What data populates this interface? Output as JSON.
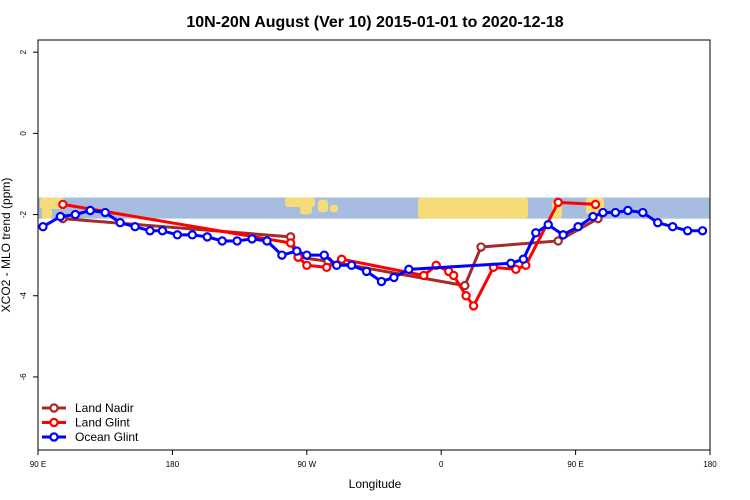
{
  "chart_data": {
    "type": "line",
    "title": "10N-20N August (Ver 10)   2015-01-01 to 2020-12-18",
    "xlabel": "Longitude",
    "ylabel": "XCO2 - MLO trend (ppm)",
    "xlim": [
      -90,
      180
    ],
    "ylim": [
      -7.8,
      2.3
    ],
    "x_ticks": [
      {
        "value": -90,
        "label": "90 E"
      },
      {
        "value": -36,
        "label": "180"
      },
      {
        "value": 18,
        "label": "90 W"
      },
      {
        "value": 72,
        "label": "0"
      },
      {
        "value": 126,
        "label": "90 E"
      },
      {
        "value": 180,
        "label": "180"
      }
    ],
    "y_ticks": [
      {
        "value": 2,
        "label": "2"
      },
      {
        "value": 0,
        "label": "0"
      },
      {
        "value": -2,
        "label": "-2"
      },
      {
        "value": -4,
        "label": "-4"
      },
      {
        "value": -6,
        "label": "-6"
      }
    ],
    "map_band": {
      "y_top": -1.58,
      "y_bottom": -2.1,
      "ocean_color": "#a6bde0",
      "land_color": "#f5dc78"
    },
    "legend_position": "bottom-left",
    "series": [
      {
        "name": "Land Nadir",
        "color": "#a52a2a",
        "x": [
          -80,
          11.5,
          14.5,
          26.5,
          81.5,
          88,
          119,
          135
        ],
        "y": [
          -2.1,
          -2.55,
          -3.05,
          -3.15,
          -3.75,
          -2.8,
          -2.65,
          -2.1
        ]
      },
      {
        "name": "Land Glint",
        "color": "#ff0000",
        "x": [
          -80,
          11.5,
          14.5,
          18,
          26,
          32,
          65,
          70,
          75,
          77,
          82,
          85,
          93,
          102,
          106,
          119,
          134
        ],
        "y": [
          -1.75,
          -2.7,
          -3.05,
          -3.25,
          -3.3,
          -3.1,
          -3.5,
          -3.25,
          -3.4,
          -3.5,
          -4.0,
          -4.25,
          -3.3,
          -3.35,
          -3.25,
          -1.7,
          -1.75
        ]
      },
      {
        "name": "Ocean Glint",
        "color": "#0000ff",
        "x": [
          -88,
          -81,
          -75,
          -69,
          -63,
          -57,
          -51,
          -45,
          -40,
          -34,
          -28,
          -22,
          -16,
          -10,
          -4,
          2,
          8,
          14,
          18,
          25,
          30,
          36,
          42,
          48,
          53,
          59,
          100,
          105,
          110,
          115,
          121,
          127,
          133,
          137,
          142,
          147,
          153,
          159,
          165,
          171,
          177
        ],
        "y": [
          -2.3,
          -2.05,
          -2.0,
          -1.9,
          -1.95,
          -2.2,
          -2.3,
          -2.4,
          -2.4,
          -2.5,
          -2.5,
          -2.55,
          -2.65,
          -2.65,
          -2.6,
          -2.65,
          -3.0,
          -2.9,
          -3.0,
          -3.0,
          -3.25,
          -3.25,
          -3.4,
          -3.65,
          -3.55,
          -3.35,
          -3.2,
          -3.1,
          -2.45,
          -2.25,
          -2.5,
          -2.3,
          -2.05,
          -1.95,
          -1.95,
          -1.9,
          -1.95,
          -2.2,
          -2.3,
          -2.4,
          -2.4
        ]
      }
    ]
  }
}
